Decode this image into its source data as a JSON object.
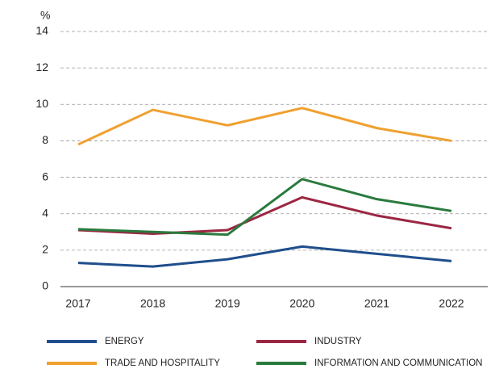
{
  "chart_data": {
    "type": "line",
    "y_label": "%",
    "categories": [
      "2017",
      "2018",
      "2019",
      "2020",
      "2021",
      "2022"
    ],
    "series": [
      {
        "name": "ENERGY",
        "color": "#1f4e8c",
        "values": [
          1.3,
          1.1,
          1.5,
          2.2,
          1.8,
          1.4
        ]
      },
      {
        "name": "INDUSTRY",
        "color": "#9b2743",
        "values": [
          3.1,
          2.9,
          3.1,
          4.9,
          3.9,
          3.2
        ]
      },
      {
        "name": "TRADE AND HOSPITALITY",
        "color": "#f0a030",
        "values": [
          7.8,
          9.7,
          8.85,
          9.8,
          8.7,
          8.0
        ]
      },
      {
        "name": "INFORMATION AND COMMUNICATION",
        "color": "#2a7a3e",
        "values": [
          3.15,
          3.0,
          2.85,
          5.9,
          4.8,
          4.15
        ]
      }
    ],
    "ylim": [
      0,
      14
    ],
    "yticks": [
      0,
      2,
      4,
      6,
      8,
      10,
      12,
      14
    ],
    "grid": true
  }
}
